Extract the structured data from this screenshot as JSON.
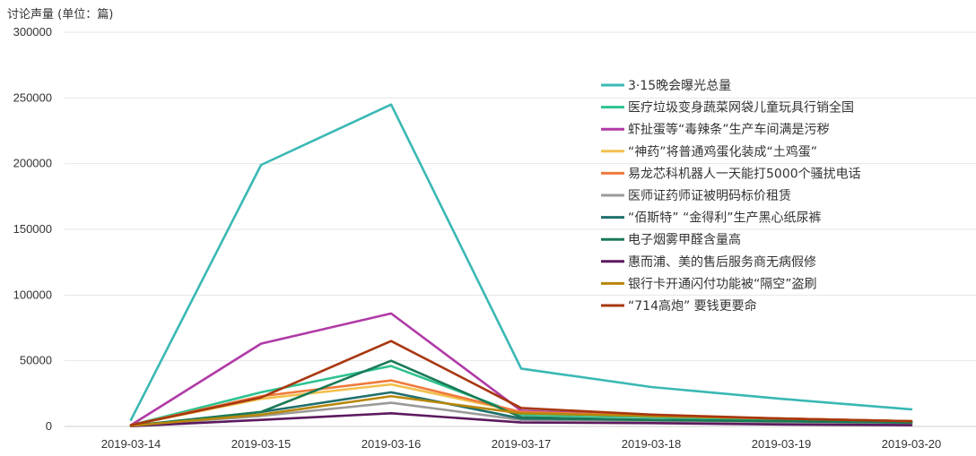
{
  "chart_data": {
    "type": "line",
    "ylabel": "讨论声量 (单位：篇)",
    "xlabel": "",
    "title": "",
    "categories": [
      "2019-03-14",
      "2019-03-15",
      "2019-03-16",
      "2019-03-17",
      "2019-03-18",
      "2019-03-19",
      "2019-03-20"
    ],
    "ylim": [
      0,
      300000
    ],
    "yticks": [
      0,
      50000,
      100000,
      150000,
      200000,
      250000,
      300000
    ],
    "grid": true,
    "legend_position": "right",
    "series": [
      {
        "name": "3·15晚会曝光总量",
        "color": "#3ab8b4",
        "values": [
          5000,
          199000,
          245000,
          44000,
          30000,
          21000,
          13000
        ]
      },
      {
        "name": "医疗垃圾变身蔬菜网袋儿童玩具行销全国",
        "color": "#2ec28f",
        "values": [
          1000,
          26000,
          46000,
          9000,
          7000,
          5000,
          4000
        ]
      },
      {
        "name": "虾扯蛋等“毒辣条”生产车间满是污秽",
        "color": "#b03aa6",
        "values": [
          1000,
          63000,
          86000,
          12000,
          8000,
          6000,
          4000
        ]
      },
      {
        "name": "“神药”将普通鸡蛋化装成“土鸡蛋”",
        "color": "#f2c04e",
        "values": [
          1000,
          21000,
          32000,
          11000,
          8000,
          6000,
          4000
        ]
      },
      {
        "name": "易龙芯科机器人一天能打5000个骚扰电话",
        "color": "#ef7a3c",
        "values": [
          1000,
          23000,
          35000,
          11000,
          8000,
          6000,
          4000
        ]
      },
      {
        "name": "医师证药师证被明码标价租赁",
        "color": "#9a9a9a",
        "values": [
          500,
          8000,
          18000,
          5000,
          4000,
          3000,
          2500
        ]
      },
      {
        "name": "“佰斯特” “金得利”生产黑心纸尿裤",
        "color": "#1f6f6c",
        "values": [
          500,
          11000,
          26000,
          6000,
          5000,
          4000,
          3000
        ]
      },
      {
        "name": "电子烟雾甲醛含量高",
        "color": "#187a55",
        "values": [
          500,
          11000,
          50000,
          7000,
          5000,
          4000,
          3000
        ]
      },
      {
        "name": "惠而浦、美的售后服务商无病假修",
        "color": "#5c1a5e",
        "values": [
          200,
          5000,
          10000,
          3000,
          2500,
          1500,
          1000
        ]
      },
      {
        "name": "银行卡开通闪付功能被“隔空”盗刷",
        "color": "#b8870b",
        "values": [
          500,
          9000,
          23000,
          10000,
          8000,
          6000,
          4000
        ]
      },
      {
        "name": "“714高炮” 要钱更要命",
        "color": "#a8370f",
        "values": [
          1000,
          22000,
          65000,
          14000,
          9000,
          6000,
          4000
        ]
      }
    ]
  }
}
